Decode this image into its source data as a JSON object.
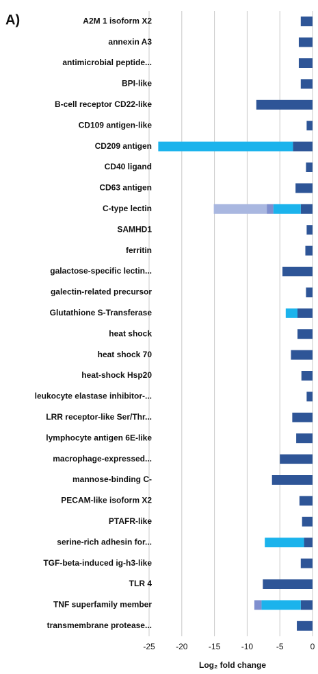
{
  "chart_data": {
    "type": "stacked-barh",
    "panel_label": "A)",
    "xlabel": "Log₂ fold change",
    "categories": [
      "A2M 1 isoform X2",
      "annexin A3",
      "antimicrobial peptide...",
      "BPI-like",
      "B-cell receptor CD22-like",
      "CD109 antigen-like",
      "CD209 antigen",
      "CD40 ligand",
      "CD63 antigen",
      "C-type lectin",
      "SAMHD1",
      "ferritin",
      "galactose-specific lectin...",
      "galectin-related precursor",
      "Glutathione S-Transferase",
      "heat shock",
      "heat shock 70",
      "heat-shock Hsp20",
      "leukocyte elastase inhibitor-...",
      "LRR receptor-like Ser/Thr...",
      "lymphocyte antigen 6E-like",
      "macrophage-expressed...",
      "mannose-binding C-",
      "PECAM-like isoform X2",
      "PTAFR-like",
      "serine-rich adhesin for...",
      "TGF-beta-induced ig-h3-like",
      "TLR 4",
      "TNF superfamily member",
      "transmembrane protease..."
    ],
    "series": [
      {
        "color": "#2e5597",
        "values": [
          -1.8,
          -2.1,
          -2.1,
          -1.8,
          -8.6,
          -0.9,
          -3.0,
          -1.0,
          -2.6,
          -1.8,
          -0.9,
          -1.1,
          -4.6,
          -1.0,
          -2.3,
          -2.3,
          -3.3,
          -1.7,
          -0.9,
          -3.1,
          -2.5,
          -5.0,
          -6.2,
          -2.0,
          -1.6,
          -1.3,
          -1.8,
          -7.6,
          -1.8,
          -2.4
        ]
      },
      {
        "color": "#1bb3ec",
        "values": [
          null,
          null,
          null,
          null,
          null,
          null,
          -20.6,
          null,
          null,
          -4.2,
          null,
          null,
          null,
          null,
          -1.8,
          null,
          null,
          null,
          null,
          null,
          null,
          null,
          null,
          null,
          null,
          -6.0,
          null,
          null,
          -6.0,
          null
        ]
      },
      {
        "color": "#7f8fcf",
        "values": [
          null,
          null,
          null,
          null,
          null,
          null,
          null,
          null,
          null,
          -1.0,
          null,
          null,
          null,
          null,
          null,
          null,
          null,
          null,
          null,
          null,
          null,
          null,
          null,
          null,
          null,
          null,
          null,
          null,
          -1.1,
          null
        ]
      },
      {
        "color": "#a9b7e0",
        "values": [
          null,
          null,
          null,
          null,
          null,
          null,
          null,
          null,
          null,
          -8.1,
          null,
          null,
          null,
          null,
          null,
          null,
          null,
          null,
          null,
          null,
          null,
          null,
          null,
          null,
          null,
          null,
          null,
          null,
          null,
          null
        ]
      }
    ],
    "xlim": [
      -25,
      0
    ],
    "xticks": [
      -25,
      -20,
      -15,
      -10,
      -5,
      0
    ],
    "grid": true
  }
}
